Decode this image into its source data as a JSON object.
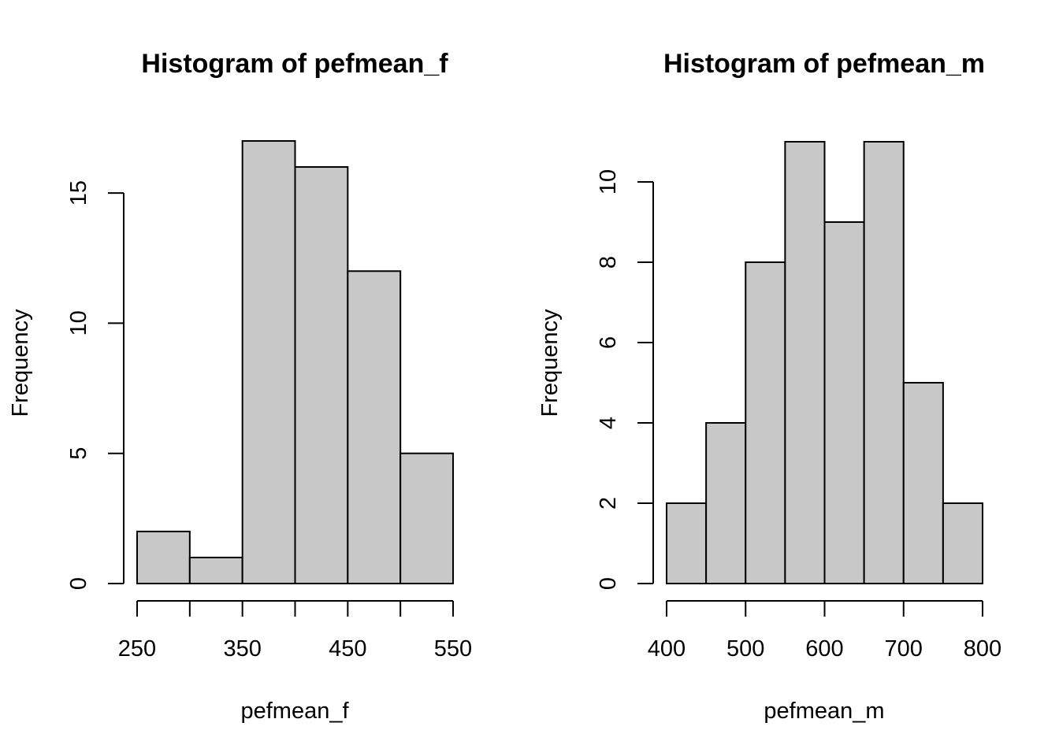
{
  "chart_data": [
    {
      "type": "bar",
      "title": "Histogram of pefmean_f",
      "xlabel": "pefmean_f",
      "ylabel": "Frequency",
      "bins": [
        [
          250,
          300
        ],
        [
          300,
          350
        ],
        [
          350,
          400
        ],
        [
          400,
          450
        ],
        [
          450,
          500
        ],
        [
          500,
          550
        ]
      ],
      "values": [
        2,
        1,
        17,
        16,
        12,
        5
      ],
      "xlim": [
        250,
        550
      ],
      "ylim": [
        0,
        17
      ],
      "x_ticks": [
        250,
        300,
        350,
        400,
        450,
        500,
        550
      ],
      "x_tick_labels": [
        "250",
        "",
        "350",
        "",
        "450",
        "",
        "550"
      ],
      "y_ticks": [
        0,
        5,
        10,
        15
      ],
      "y_tick_labels": [
        "0",
        "5",
        "10",
        "15"
      ],
      "bar_color": "#c8c8c8",
      "grid": false
    },
    {
      "type": "bar",
      "title": "Histogram of pefmean_m",
      "xlabel": "pefmean_m",
      "ylabel": "Frequency",
      "bins": [
        [
          400,
          450
        ],
        [
          450,
          500
        ],
        [
          500,
          550
        ],
        [
          550,
          600
        ],
        [
          600,
          650
        ],
        [
          650,
          700
        ],
        [
          700,
          750
        ],
        [
          750,
          800
        ]
      ],
      "values": [
        2,
        4,
        8,
        11,
        9,
        11,
        5,
        2
      ],
      "xlim": [
        400,
        800
      ],
      "ylim": [
        0,
        11
      ],
      "x_ticks": [
        400,
        500,
        600,
        700,
        800
      ],
      "x_tick_labels": [
        "400",
        "500",
        "600",
        "700",
        "800"
      ],
      "y_ticks": [
        0,
        2,
        4,
        6,
        8,
        10
      ],
      "y_tick_labels": [
        "0",
        "2",
        "4",
        "6",
        "8",
        "10"
      ],
      "bar_color": "#c8c8c8",
      "grid": false
    }
  ]
}
